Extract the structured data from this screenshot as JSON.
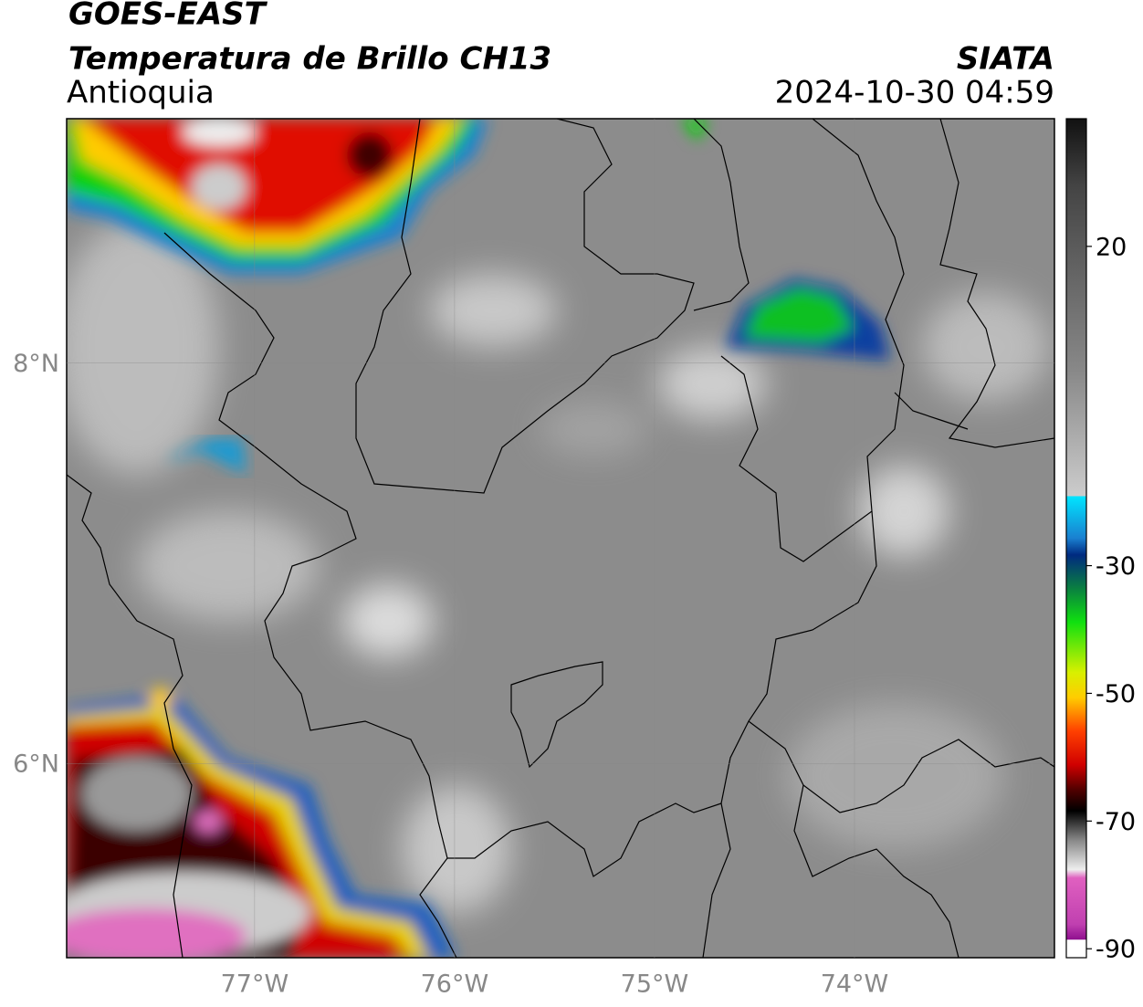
{
  "header": {
    "title": "GOES-EAST",
    "subtitle": "Temperatura de Brillo CH13",
    "region": "Antioquia",
    "source": "SIATA",
    "datetime": "2024-10-30 04:59"
  },
  "map": {
    "xlim": [
      -77.94,
      -73.0
    ],
    "ylim": [
      5.03,
      9.22
    ],
    "xticks": [
      {
        "value": -77,
        "label": "77°W"
      },
      {
        "value": -76,
        "label": "76°W"
      },
      {
        "value": -75,
        "label": "75°W"
      },
      {
        "value": -74,
        "label": "74°W"
      }
    ],
    "yticks": [
      {
        "value": 8,
        "label": "8°N"
      },
      {
        "value": 6,
        "label": "6°N"
      }
    ],
    "grid": true
  },
  "colorbar": {
    "lim": [
      -91.4,
      40
    ],
    "ticks": [
      20,
      -30,
      -50,
      -70,
      -90
    ]
  }
}
